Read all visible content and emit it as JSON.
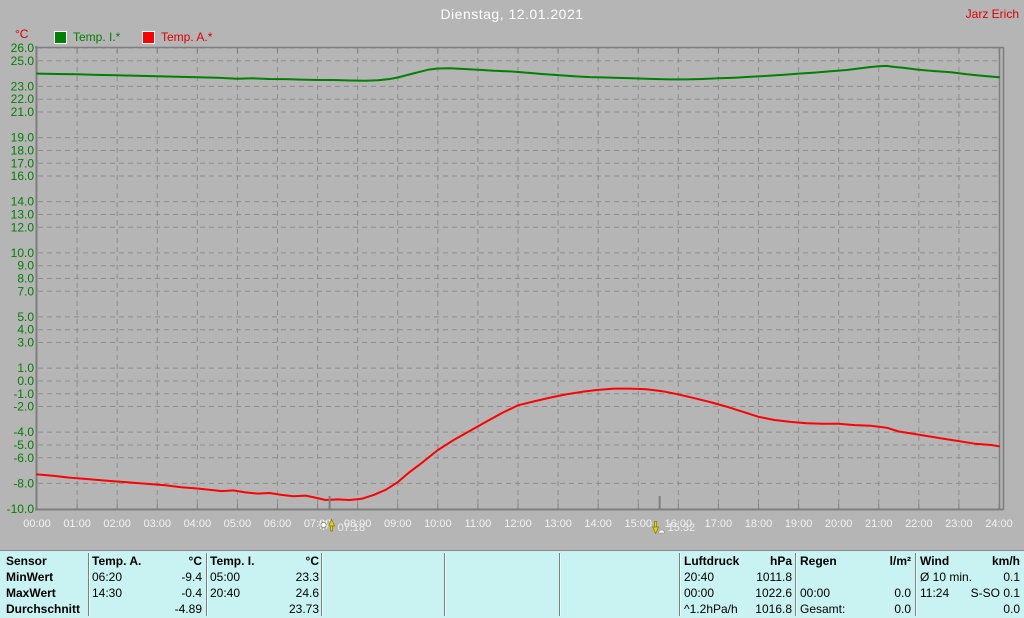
{
  "window": {
    "title_date": "Dienstag, 12.01.2021",
    "station_name": "Jarz Erich"
  },
  "axis": {
    "y_unit_label": "°C"
  },
  "legend": {
    "items": [
      {
        "label": "Temp. I.*",
        "color": "#008000"
      },
      {
        "label": "Temp. A.*",
        "color": "#ff0000"
      }
    ]
  },
  "chart_data": {
    "type": "line",
    "title": "Dienstag, 12.01.2021",
    "xlabel": "",
    "ylabel": "°C",
    "ylim": [
      -10,
      26
    ],
    "x_hours_range": [
      0,
      24
    ],
    "grid": "dashed gray lines at each labeled degree and each hour",
    "legend_position": "top-left",
    "x_tick_labels": [
      "00:00",
      "01:00",
      "02:00",
      "03:00",
      "04:00",
      "05:00",
      "06:00",
      "07:00",
      "08:00",
      "09:00",
      "10:00",
      "11:00",
      "12:00",
      "13:00",
      "14:00",
      "15:00",
      "16:00",
      "17:00",
      "18:00",
      "19:00",
      "20:00",
      "21:00",
      "22:00",
      "23:00",
      "24:00"
    ],
    "y_tick_values": [
      26,
      25,
      23,
      22,
      21,
      19,
      18,
      17,
      16,
      14,
      13,
      12,
      10,
      9,
      8,
      7,
      5,
      4,
      3,
      1,
      0,
      -1,
      -2,
      -4,
      -5,
      -6,
      -8,
      -10
    ],
    "series": [
      {
        "name": "Temp. I.*",
        "color": "#008000",
        "points": [
          [
            0,
            24.0
          ],
          [
            0.5,
            23.97
          ],
          [
            1,
            23.95
          ],
          [
            1.5,
            23.9
          ],
          [
            2,
            23.87
          ],
          [
            2.5,
            23.83
          ],
          [
            3,
            23.8
          ],
          [
            3.5,
            23.75
          ],
          [
            4,
            23.72
          ],
          [
            4.5,
            23.67
          ],
          [
            5,
            23.6
          ],
          [
            5.4,
            23.63
          ],
          [
            5.8,
            23.58
          ],
          [
            6.2,
            23.57
          ],
          [
            6.6,
            23.53
          ],
          [
            7,
            23.5
          ],
          [
            7.4,
            23.5
          ],
          [
            7.8,
            23.46
          ],
          [
            8.2,
            23.44
          ],
          [
            8.5,
            23.48
          ],
          [
            8.8,
            23.58
          ],
          [
            9,
            23.7
          ],
          [
            9.25,
            23.9
          ],
          [
            9.5,
            24.1
          ],
          [
            9.75,
            24.3
          ],
          [
            10,
            24.4
          ],
          [
            10.3,
            24.42
          ],
          [
            10.6,
            24.37
          ],
          [
            11,
            24.3
          ],
          [
            11.4,
            24.22
          ],
          [
            11.8,
            24.17
          ],
          [
            12.2,
            24.08
          ],
          [
            12.6,
            23.97
          ],
          [
            13,
            23.88
          ],
          [
            13.4,
            23.8
          ],
          [
            13.8,
            23.73
          ],
          [
            14.2,
            23.7
          ],
          [
            14.6,
            23.66
          ],
          [
            15,
            23.62
          ],
          [
            15.4,
            23.58
          ],
          [
            15.8,
            23.55
          ],
          [
            16.2,
            23.55
          ],
          [
            16.6,
            23.58
          ],
          [
            17,
            23.63
          ],
          [
            17.4,
            23.68
          ],
          [
            17.8,
            23.75
          ],
          [
            18.2,
            23.82
          ],
          [
            18.6,
            23.9
          ],
          [
            19,
            24.0
          ],
          [
            19.4,
            24.08
          ],
          [
            19.8,
            24.18
          ],
          [
            20.2,
            24.28
          ],
          [
            20.5,
            24.4
          ],
          [
            20.8,
            24.52
          ],
          [
            21,
            24.58
          ],
          [
            21.2,
            24.6
          ],
          [
            21.4,
            24.52
          ],
          [
            21.6,
            24.45
          ],
          [
            22,
            24.3
          ],
          [
            22.4,
            24.2
          ],
          [
            22.8,
            24.1
          ],
          [
            23.2,
            23.95
          ],
          [
            23.6,
            23.82
          ],
          [
            24,
            23.72
          ]
        ]
      },
      {
        "name": "Temp. A.*",
        "color": "#ff0000",
        "points": [
          [
            0,
            -7.3
          ],
          [
            0.4,
            -7.4
          ],
          [
            0.8,
            -7.55
          ],
          [
            1.2,
            -7.65
          ],
          [
            1.6,
            -7.75
          ],
          [
            2,
            -7.85
          ],
          [
            2.4,
            -7.95
          ],
          [
            2.8,
            -8.05
          ],
          [
            3.2,
            -8.15
          ],
          [
            3.6,
            -8.3
          ],
          [
            4,
            -8.4
          ],
          [
            4.3,
            -8.5
          ],
          [
            4.6,
            -8.6
          ],
          [
            4.9,
            -8.55
          ],
          [
            5.2,
            -8.7
          ],
          [
            5.5,
            -8.8
          ],
          [
            5.8,
            -8.75
          ],
          [
            6.1,
            -8.9
          ],
          [
            6.4,
            -9.0
          ],
          [
            6.7,
            -8.95
          ],
          [
            7,
            -9.15
          ],
          [
            7.2,
            -9.3
          ],
          [
            7.5,
            -9.25
          ],
          [
            7.8,
            -9.3
          ],
          [
            8.1,
            -9.2
          ],
          [
            8.4,
            -8.9
          ],
          [
            8.7,
            -8.5
          ],
          [
            9,
            -7.9
          ],
          [
            9.3,
            -7.1
          ],
          [
            9.6,
            -6.4
          ],
          [
            10,
            -5.4
          ],
          [
            10.4,
            -4.6
          ],
          [
            10.8,
            -3.9
          ],
          [
            11.2,
            -3.2
          ],
          [
            11.6,
            -2.5
          ],
          [
            12,
            -1.9
          ],
          [
            12.4,
            -1.6
          ],
          [
            12.8,
            -1.3
          ],
          [
            13.2,
            -1.05
          ],
          [
            13.6,
            -0.85
          ],
          [
            14,
            -0.7
          ],
          [
            14.4,
            -0.6
          ],
          [
            14.8,
            -0.6
          ],
          [
            15.2,
            -0.65
          ],
          [
            15.6,
            -0.8
          ],
          [
            16,
            -1.05
          ],
          [
            16.4,
            -1.35
          ],
          [
            16.8,
            -1.65
          ],
          [
            17.2,
            -2.0
          ],
          [
            17.6,
            -2.4
          ],
          [
            18,
            -2.8
          ],
          [
            18.4,
            -3.05
          ],
          [
            18.8,
            -3.2
          ],
          [
            19.2,
            -3.3
          ],
          [
            19.6,
            -3.35
          ],
          [
            20,
            -3.35
          ],
          [
            20.4,
            -3.45
          ],
          [
            20.8,
            -3.5
          ],
          [
            21.2,
            -3.65
          ],
          [
            21.5,
            -3.95
          ],
          [
            21.8,
            -4.1
          ],
          [
            22.2,
            -4.3
          ],
          [
            22.6,
            -4.5
          ],
          [
            23,
            -4.7
          ],
          [
            23.4,
            -4.9
          ],
          [
            23.8,
            -5.0
          ],
          [
            24,
            -5.1
          ]
        ]
      }
    ],
    "annotations": [
      {
        "type": "sunrise",
        "time": "07:18"
      },
      {
        "type": "sunset",
        "time": "15:32"
      }
    ]
  },
  "stats_table": {
    "row_labels": [
      "Sensor",
      "MinWert",
      "MaxWert",
      "Durchschnitt"
    ],
    "sections": [
      {
        "name": "temp-a",
        "header": "Temp. A.",
        "unit": "°C",
        "rows": [
          [
            "06:20",
            "-9.4"
          ],
          [
            "14:30",
            "-0.4"
          ],
          [
            "",
            "-4.89"
          ]
        ]
      },
      {
        "name": "temp-i",
        "header": "Temp. I.",
        "unit": "°C",
        "rows": [
          [
            "05:00",
            "23.3"
          ],
          [
            "20:40",
            "24.6"
          ],
          [
            "",
            "23.73"
          ]
        ]
      },
      {
        "name": "luftdruck",
        "header": "Luftdruck",
        "unit": "hPa",
        "rows": [
          [
            "20:40",
            "1011.8"
          ],
          [
            "00:00",
            "1022.6"
          ],
          [
            "^1.2hPa/h",
            "1016.8"
          ]
        ]
      },
      {
        "name": "regen",
        "header": "Regen",
        "unit": "l/m²",
        "rows": [
          [
            "",
            ""
          ],
          [
            "00:00",
            "0.0"
          ],
          [
            "Gesamt:",
            "0.0"
          ]
        ]
      },
      {
        "name": "wind",
        "header": "Wind",
        "unit": "km/h",
        "rows": [
          [
            "Ø 10 min.",
            "0.1"
          ],
          [
            "11:24",
            "S-SO 0.1"
          ],
          [
            "",
            "0.0"
          ]
        ]
      }
    ]
  }
}
